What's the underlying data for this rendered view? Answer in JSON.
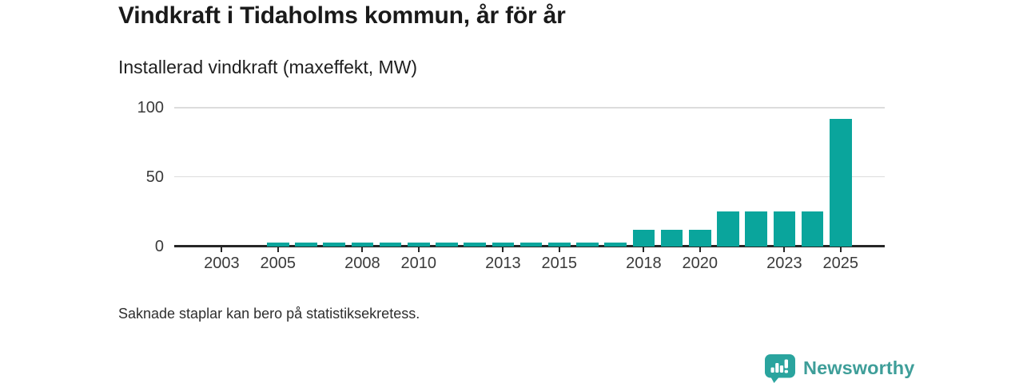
{
  "page": {
    "title": "Vindkraft i Tidaholms kommun, år för år",
    "subtitle": "Installerad vindkraft (maxeffekt, MW)",
    "note": "Saknade staplar kan bero på statistiksekretess."
  },
  "branding": {
    "logo_text": "Newsworthy",
    "logo_icon": "newsworthy-chart-bubble-icon",
    "logo_text_color": "#3e9e99",
    "logo_icon_color": "#2aa49e"
  },
  "chart_data": {
    "type": "bar",
    "title": "Vindkraft i Tidaholms kommun, år för år",
    "subtitle": "Installerad vindkraft (maxeffekt, MW)",
    "xlabel": "",
    "ylabel": "Installerad vindkraft (maxeffekt, MW)",
    "unit": "MW",
    "categories": [
      "2002",
      "2003",
      "2004",
      "2005",
      "2006",
      "2007",
      "2008",
      "2009",
      "2010",
      "2011",
      "2012",
      "2013",
      "2014",
      "2015",
      "2016",
      "2017",
      "2018",
      "2019",
      "2020",
      "2021",
      "2022",
      "2023",
      "2024",
      "2025"
    ],
    "values": [
      null,
      null,
      null,
      2.5,
      2.5,
      2.5,
      2.5,
      2.5,
      2.5,
      2.5,
      2.5,
      2.5,
      2.5,
      2.5,
      2.5,
      2.5,
      12,
      12,
      12,
      25,
      25,
      25,
      25,
      92
    ],
    "missing_years": [
      "2002",
      "2003",
      "2004"
    ],
    "ylim": [
      0,
      100
    ],
    "y_ticks": [
      0,
      50,
      100
    ],
    "x_tick_labels": [
      "2003",
      "2005",
      "2008",
      "2010",
      "2013",
      "2015",
      "2018",
      "2020",
      "2023",
      "2025"
    ],
    "grid": "horizontal",
    "legend": "none",
    "bar_color": "#0aa59c",
    "axis_color": "#262626",
    "gridline_color": "#dcdcdc",
    "tick_label_color": "#3a3a3a",
    "note": "Saknade staplar kan bero på statistiksekretess."
  }
}
